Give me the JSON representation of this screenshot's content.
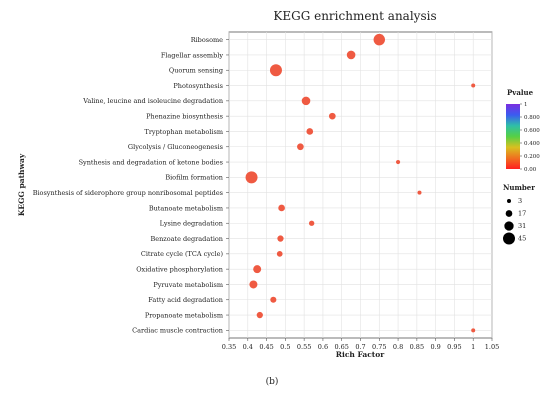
{
  "chart_data": {
    "type": "scatter",
    "title": "KEGG enrichment analysis",
    "xlabel": "Rich Factor",
    "ylabel": "KEGG pathway",
    "caption": "(b)",
    "xlim": [
      0.35,
      1.05
    ],
    "xticks": [
      "0.35",
      "0.4",
      "0.45",
      "0.5",
      "0.55",
      "0.6",
      "0.65",
      "0.7",
      "0.75",
      "0.8",
      "0.85",
      "0.9",
      "0.95",
      "1",
      "1.05"
    ],
    "grid": true,
    "categories": [
      "Ribosome",
      "Flagellar assembly",
      "Quorum sensing",
      "Photosynthesis",
      "Valine, leucine and isoleucine degradation",
      "Phenazine biosynthesis",
      "Tryptophan metabolism",
      "Glycolysis / Gluconeogenesis",
      "Synthesis and degradation of ketone bodies",
      "Biofilm formation",
      "Biosynthesis of siderophore group nonribosomal peptides",
      "Butanoate metabolism",
      "Lysine degradation",
      "Benzoate degradation",
      "Citrate cycle (TCA cycle)",
      "Oxidative phosphorylation",
      "Pyruvate metabolism",
      "Fatty acid degradation",
      "Propanoate metabolism",
      "Cardiac muscle contraction"
    ],
    "points": [
      {
        "x": 0.75,
        "number": 42,
        "pvalue": 0.0
      },
      {
        "x": 0.675,
        "number": 27,
        "pvalue": 0.0
      },
      {
        "x": 0.475,
        "number": 45,
        "pvalue": 0.0
      },
      {
        "x": 1.0,
        "number": 3,
        "pvalue": 0.02
      },
      {
        "x": 0.555,
        "number": 27,
        "pvalue": 0.0
      },
      {
        "x": 0.625,
        "number": 17,
        "pvalue": 0.01
      },
      {
        "x": 0.565,
        "number": 17,
        "pvalue": 0.01
      },
      {
        "x": 0.54,
        "number": 17,
        "pvalue": 0.02
      },
      {
        "x": 0.8,
        "number": 4,
        "pvalue": 0.03
      },
      {
        "x": 0.41,
        "number": 45,
        "pvalue": 0.0
      },
      {
        "x": 0.857,
        "number": 3,
        "pvalue": 0.04
      },
      {
        "x": 0.49,
        "number": 17,
        "pvalue": 0.03
      },
      {
        "x": 0.57,
        "number": 10,
        "pvalue": 0.04
      },
      {
        "x": 0.487,
        "number": 15,
        "pvalue": 0.04
      },
      {
        "x": 0.485,
        "number": 12,
        "pvalue": 0.05
      },
      {
        "x": 0.425,
        "number": 24,
        "pvalue": 0.04
      },
      {
        "x": 0.415,
        "number": 24,
        "pvalue": 0.05
      },
      {
        "x": 0.468,
        "number": 14,
        "pvalue": 0.06
      },
      {
        "x": 0.432,
        "number": 15,
        "pvalue": 0.07
      },
      {
        "x": 1.0,
        "number": 3,
        "pvalue": 0.08
      }
    ],
    "color_legend": {
      "title": "Pvalue",
      "ticks": [
        "1",
        "0.800",
        "0.600",
        "0.400",
        "0.200",
        "0.00"
      ],
      "colors": [
        "#7b2fe0",
        "#3b5bf0",
        "#2fbfa8",
        "#55d045",
        "#d8c020",
        "#f07020",
        "#ff2020"
      ]
    },
    "size_legend": {
      "title": "Number",
      "values": [
        3,
        17,
        31,
        45
      ],
      "labels": [
        "3",
        "17",
        "31",
        "45"
      ]
    },
    "point_color": "#ef5a42"
  }
}
